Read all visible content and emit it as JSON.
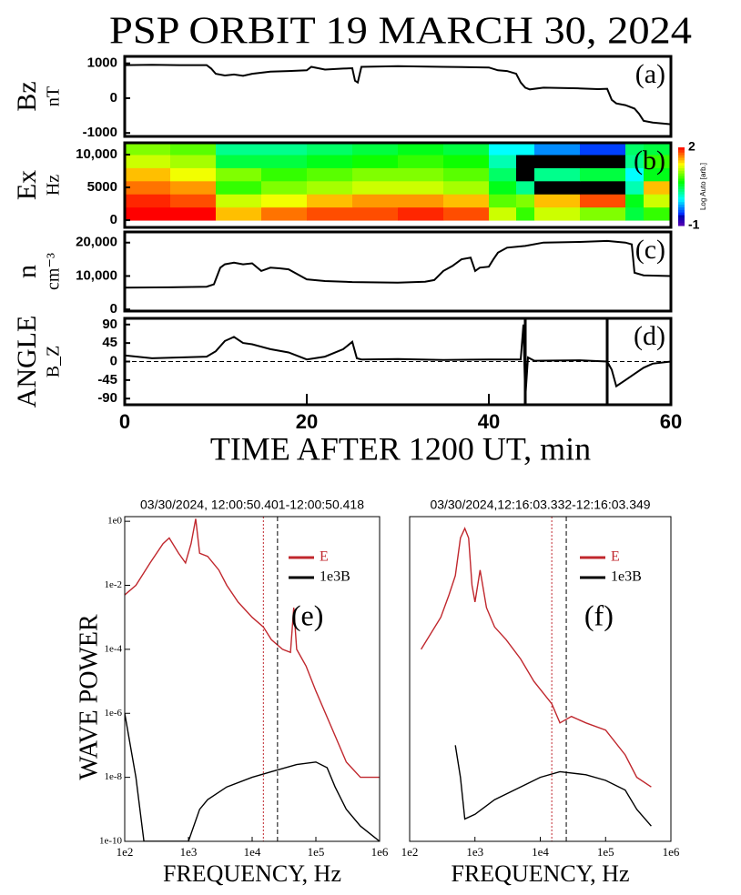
{
  "title": "PSP ORBIT 19  MARCH 30, 2024",
  "chart_data": [
    {
      "type": "line",
      "label": "(a)",
      "ylabel": "Bz",
      "yunit": "nT",
      "xlim": [
        0,
        60
      ],
      "ylim": [
        -1100,
        1200
      ],
      "yticks": [
        -1000,
        0,
        1000
      ],
      "series": [
        {
          "color": "#000000",
          "x": [
            0,
            3,
            6,
            9,
            9.5,
            10,
            11,
            12,
            13,
            14,
            16,
            18,
            20,
            20.5,
            22,
            24,
            25,
            25.3,
            25.6,
            26,
            30,
            35,
            40,
            41,
            42,
            43,
            43.5,
            44,
            44.5,
            46,
            50,
            52,
            53,
            53.5,
            54,
            55,
            56,
            56.5,
            57,
            58,
            60
          ],
          "values": [
            950,
            960,
            950,
            950,
            850,
            700,
            650,
            680,
            640,
            700,
            760,
            780,
            800,
            900,
            820,
            850,
            860,
            500,
            450,
            900,
            920,
            900,
            880,
            800,
            780,
            700,
            450,
            300,
            250,
            300,
            280,
            260,
            270,
            -50,
            -150,
            -200,
            -300,
            -450,
            -650,
            -700,
            -750
          ]
        }
      ]
    },
    {
      "type": "heatmap",
      "label": "(b)",
      "ylabel": "Ex",
      "yunit": "Hz",
      "xlim": [
        0,
        60
      ],
      "ylim": [
        -1100,
        11800
      ],
      "yticks": [
        0,
        5000,
        {
          "value": 10000,
          "label": "10,000"
        }
      ],
      "x_edges": [
        0,
        5,
        10,
        15,
        20,
        25,
        30,
        35,
        40,
        43,
        45,
        50,
        55,
        57,
        60
      ],
      "y_edges": [
        0,
        2000,
        4000,
        6000,
        8000,
        10000,
        11800
      ],
      "values": [
        [
          2,
          2,
          1.5,
          1.7,
          1.8,
          1.8,
          1.9,
          1.8,
          1.2,
          0.8,
          1.2,
          1.0,
          0.5,
          0.8
        ],
        [
          1.9,
          1.8,
          1.2,
          1.3,
          1.5,
          1.6,
          1.6,
          1.5,
          0.9,
          1.0,
          1.5,
          1.8,
          0.6,
          1.2
        ],
        [
          1.7,
          1.6,
          0.8,
          1.0,
          1.1,
          1.2,
          1.2,
          1.1,
          0.6,
          0.3,
          null,
          null,
          0.2,
          1.5
        ],
        [
          1.5,
          1.3,
          1.0,
          0.8,
          0.9,
          1.0,
          1.0,
          0.9,
          0.4,
          null,
          0.3,
          0.5,
          0.0,
          0.6
        ],
        [
          1.2,
          1.1,
          0.5,
          0.5,
          0.6,
          0.7,
          0.8,
          0.7,
          0.2,
          null,
          null,
          null,
          0.3,
          0.8
        ],
        [
          1.0,
          0.9,
          0.3,
          0.3,
          0.4,
          0.5,
          0.6,
          0.5,
          0.0,
          0.0,
          -0.3,
          -0.5,
          0.4,
          0.5
        ]
      ],
      "colormap": "rainbow",
      "na_color": "#000000",
      "colorbar": {
        "label": "Log Auto [arb.]",
        "vlim": [
          -1,
          2
        ],
        "ticks": [
          -1,
          2
        ]
      }
    },
    {
      "type": "line",
      "label": "(c)",
      "ylabel": "n",
      "yunit": "cm⁻³",
      "xlim": [
        0,
        60
      ],
      "ylim": [
        -500,
        23200
      ],
      "yticks": [
        0,
        {
          "value": 10000,
          "label": "10,000"
        },
        {
          "value": 20000,
          "label": "20,000"
        }
      ],
      "series": [
        {
          "color": "#000000",
          "x": [
            0,
            5,
            9,
            9.8,
            10.5,
            11,
            12,
            13,
            14,
            15,
            16,
            17,
            18,
            19,
            20,
            22,
            25,
            30,
            33,
            34,
            35,
            36,
            37,
            38,
            38.5,
            39,
            40,
            40.5,
            41,
            42,
            44,
            46,
            50,
            53,
            55,
            55.7,
            56,
            57,
            60
          ],
          "values": [
            6500,
            6600,
            6800,
            7500,
            12500,
            13500,
            14000,
            13500,
            13800,
            11500,
            12500,
            12300,
            12000,
            10500,
            9000,
            8500,
            8200,
            8000,
            8300,
            8800,
            11500,
            13000,
            15000,
            15500,
            11500,
            12500,
            12800,
            15000,
            17000,
            18500,
            19000,
            20000,
            20200,
            20500,
            20000,
            19500,
            11000,
            10200,
            10000
          ]
        }
      ]
    },
    {
      "type": "line",
      "label": "(d)",
      "ylabel": "ANGLE",
      "yunit": "B_Z",
      "xlabel": "TIME AFTER 1200 UT, min",
      "xlim": [
        0,
        60
      ],
      "ylim": [
        -105,
        105
      ],
      "xticks": [
        0,
        20,
        40,
        60
      ],
      "yticks": [
        -90,
        -45,
        0,
        45,
        90
      ],
      "reference_lines": [
        {
          "axis": "y",
          "value": 0,
          "color": "#000000",
          "style": "dashed"
        },
        {
          "axis": "x",
          "value": 44,
          "color": "#000000",
          "style": "solid"
        },
        {
          "axis": "x",
          "value": 53,
          "color": "#000000",
          "style": "solid"
        }
      ],
      "series": [
        {
          "color": "#000000",
          "x": [
            0,
            3,
            6,
            9,
            10,
            11,
            12,
            13,
            14,
            16,
            18,
            20,
            22,
            24,
            25,
            25.5,
            26,
            30,
            35,
            40,
            43.5,
            43.8,
            44,
            44.3,
            45,
            50,
            53,
            53.5,
            54,
            55,
            56,
            57,
            58,
            60
          ],
          "values": [
            15,
            8,
            10,
            12,
            25,
            50,
            60,
            45,
            42,
            30,
            22,
            5,
            12,
            30,
            48,
            8,
            5,
            6,
            4,
            5,
            5,
            90,
            -90,
            10,
            2,
            3,
            0,
            -20,
            -60,
            -45,
            -30,
            -15,
            -5,
            0
          ]
        }
      ]
    },
    {
      "type": "line",
      "title": "03/30/2024, 12:00:50.401-12:00:50.418",
      "label": "(e)",
      "ylabel": "WAVE POWER",
      "xlabel": "FREQUENCY, Hz",
      "xscale": "log",
      "yscale": "log",
      "legend": "upper right",
      "xlim": [
        100,
        1000000
      ],
      "ylim": [
        1e-10,
        1.4
      ],
      "xticks": [
        {
          "value": 100,
          "label": "1e2"
        },
        {
          "value": 1000,
          "label": "1e3"
        },
        {
          "value": 10000,
          "label": "1e4"
        },
        {
          "value": 100000,
          "label": "1e5"
        },
        {
          "value": 1000000,
          "label": "1e6"
        }
      ],
      "yticks": [
        {
          "value": 1,
          "label": "1e0"
        },
        {
          "value": 0.01,
          "label": "1e-2"
        },
        {
          "value": 0.0001,
          "label": "1e-4"
        },
        {
          "value": 1e-06,
          "label": "1e-6"
        },
        {
          "value": 1e-08,
          "label": "1e-8"
        },
        {
          "value": 1e-10,
          "label": "1e-10"
        }
      ],
      "reference_lines": [
        {
          "axis": "x",
          "value": 15000,
          "color": "#c0272d",
          "style": "dotted"
        },
        {
          "axis": "x",
          "value": 25000,
          "color": "#000000",
          "style": "dashed"
        }
      ],
      "series": [
        {
          "name": "E",
          "color": "#c0272d",
          "x": [
            100,
            150,
            250,
            400,
            500,
            700,
            900,
            1100,
            1300,
            1500,
            2000,
            3000,
            4000,
            6000,
            10000,
            15000,
            20000,
            30000,
            40000,
            45000,
            50000,
            70000,
            100000,
            200000,
            300000,
            500000,
            1000000
          ],
          "values": [
            0.005,
            0.01,
            0.05,
            0.2,
            0.3,
            0.1,
            0.05,
            0.2,
            1.2,
            0.1,
            0.08,
            0.03,
            0.01,
            0.003,
            0.001,
            0.0005,
            0.0002,
            0.0001,
            8e-05,
            0.002,
            0.0001,
            3e-05,
            5e-06,
            2e-07,
            3e-08,
            1e-08,
            1e-08
          ]
        },
        {
          "name": "1e3B",
          "color": "#000000",
          "x": [
            100,
            150,
            200,
            500,
            700,
            1000,
            1500,
            2000,
            4000,
            10000,
            20000,
            50000,
            100000,
            150000,
            200000,
            300000,
            500000,
            1000000
          ],
          "values": [
            1e-06,
            1e-08,
            1e-10,
            1e-10,
            1e-10,
            1e-10,
            1e-09,
            2e-09,
            5e-09,
            1e-08,
            1.5e-08,
            2.5e-08,
            3e-08,
            2e-08,
            5e-09,
            1e-09,
            3e-10,
            1e-10
          ]
        }
      ]
    },
    {
      "type": "line",
      "title": "03/30/2024,12:16:03.332-12:16:03.349",
      "label": "(f)",
      "xlabel": "FREQUENCY, Hz",
      "xscale": "log",
      "yscale": "log",
      "legend": "upper right",
      "xlim": [
        100,
        1000000
      ],
      "ylim": [
        1e-10,
        1.4
      ],
      "xticks": [
        {
          "value": 100,
          "label": "1e2"
        },
        {
          "value": 1000,
          "label": "1e3"
        },
        {
          "value": 10000,
          "label": "1e4"
        },
        {
          "value": 100000,
          "label": "1e5"
        },
        {
          "value": 1000000,
          "label": "1e6"
        }
      ],
      "reference_lines": [
        {
          "axis": "x",
          "value": 15000,
          "color": "#c0272d",
          "style": "dotted"
        },
        {
          "axis": "x",
          "value": 25000,
          "color": "#000000",
          "style": "dashed"
        }
      ],
      "series": [
        {
          "name": "E",
          "color": "#c0272d",
          "x": [
            150,
            300,
            400,
            500,
            600,
            700,
            800,
            900,
            1000,
            1200,
            1500,
            2000,
            3000,
            5000,
            8000,
            15000,
            20000,
            30000,
            50000,
            100000,
            200000,
            300000,
            500000
          ],
          "values": [
            0.0001,
            0.001,
            0.005,
            0.02,
            0.3,
            0.6,
            0.3,
            0.01,
            0.003,
            0.03,
            0.002,
            0.0005,
            0.0002,
            5e-05,
            1e-05,
            2e-06,
            5e-07,
            8e-07,
            5e-07,
            3e-07,
            5e-08,
            1e-08,
            5e-09
          ]
        },
        {
          "name": "1e3B",
          "color": "#000000",
          "x": [
            500,
            600,
            700,
            1000,
            2000,
            5000,
            10000,
            20000,
            50000,
            100000,
            200000,
            300000,
            500000
          ],
          "values": [
            1e-07,
            1e-08,
            5e-10,
            7e-10,
            2e-09,
            5e-09,
            1e-08,
            1.5e-08,
            1.2e-08,
            8e-09,
            4e-09,
            1e-09,
            3e-10
          ]
        }
      ]
    }
  ]
}
